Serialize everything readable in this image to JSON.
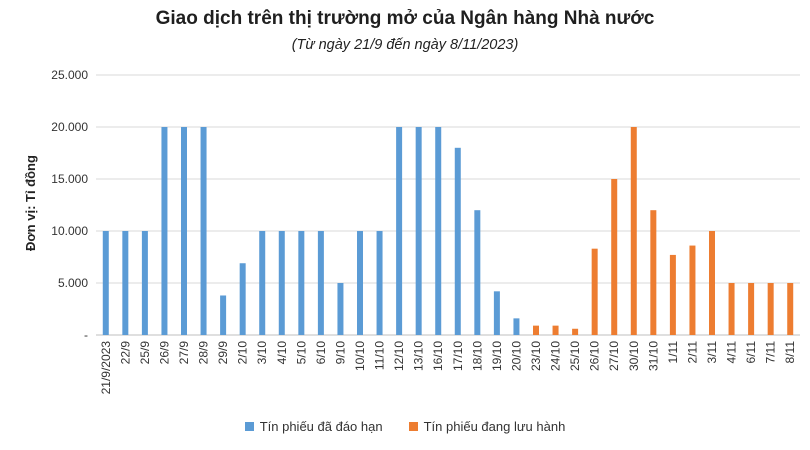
{
  "chart_data": {
    "type": "bar",
    "title": "Giao dịch trên thị trường mở của Ngân hàng Nhà nước",
    "subtitle": "(Từ ngày 21/9 đến ngày 8/11/2023)",
    "ylabel": "Đơn vị: Tỉ đồng",
    "xlabel": "",
    "ylim": [
      0,
      25000
    ],
    "yticks": [
      0,
      5000,
      10000,
      15000,
      20000,
      25000
    ],
    "ytick_labels": [
      "-",
      "5.000",
      "10.000",
      "15.000",
      "20.000",
      "25.000"
    ],
    "grid": true,
    "legend_position": "bottom",
    "categories": [
      "21/9/2023",
      "22/9",
      "25/9",
      "26/9",
      "27/9",
      "28/9",
      "29/9",
      "2/10",
      "3/10",
      "4/10",
      "5/10",
      "6/10",
      "9/10",
      "10/10",
      "11/10",
      "12/10",
      "13/10",
      "16/10",
      "17/10",
      "18/10",
      "19/10",
      "20/10",
      "23/10",
      "24/10",
      "25/10",
      "26/10",
      "27/10",
      "30/10",
      "31/10",
      "1/11",
      "2/11",
      "3/11",
      "4/11",
      "6/11",
      "7/11",
      "8/11"
    ],
    "series": [
      {
        "name": "Tín phiếu đã đáo hạn",
        "color": "#5b9bd5",
        "values": [
          10000,
          10000,
          10000,
          20000,
          20000,
          20000,
          3800,
          6900,
          10000,
          10000,
          10000,
          10000,
          5000,
          10000,
          10000,
          20000,
          20000,
          20000,
          18000,
          12000,
          4200,
          1600,
          null,
          null,
          null,
          null,
          null,
          null,
          null,
          null,
          null,
          null,
          null,
          null,
          null,
          null
        ]
      },
      {
        "name": "Tín phiếu đang lưu hành",
        "color": "#ed7d31",
        "values": [
          null,
          null,
          null,
          null,
          null,
          null,
          null,
          null,
          null,
          null,
          null,
          null,
          null,
          null,
          null,
          null,
          null,
          null,
          null,
          null,
          null,
          null,
          900,
          900,
          600,
          8300,
          15000,
          20000,
          12000,
          7700,
          8600,
          10000,
          5000,
          5000,
          5000,
          5000
        ]
      }
    ]
  }
}
